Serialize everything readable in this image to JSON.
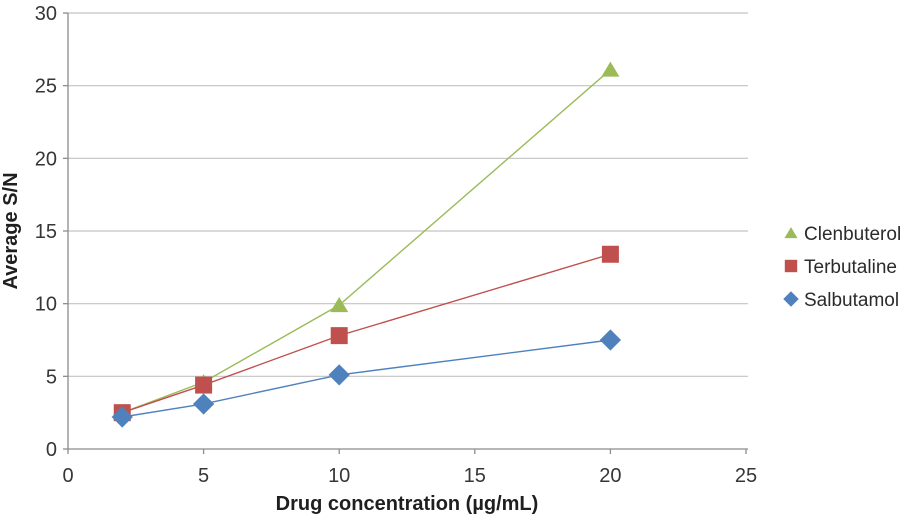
{
  "chart_data": {
    "type": "scatter",
    "title": "",
    "xlabel": "Drug concentration (µg/mL)",
    "ylabel": "Average S/N",
    "xlim": [
      0,
      25
    ],
    "ylim": [
      0,
      30
    ],
    "x_ticks": [
      0,
      5,
      10,
      15,
      20,
      25
    ],
    "y_ticks": [
      0,
      5,
      10,
      15,
      20,
      25,
      30
    ],
    "grid": "horizontal",
    "legend_position": "right",
    "x": [
      2,
      5,
      10,
      20
    ],
    "series": [
      {
        "name": "Clenbuterol",
        "marker": "triangle",
        "color": "#9BBB59",
        "values": [
          2.5,
          4.6,
          9.9,
          26.1
        ]
      },
      {
        "name": "Terbutaline",
        "marker": "square",
        "color": "#C0504D",
        "values": [
          2.5,
          4.4,
          7.8,
          13.4
        ]
      },
      {
        "name": "Salbutamol",
        "marker": "diamond",
        "color": "#4F81BD",
        "values": [
          2.2,
          3.1,
          5.1,
          7.5
        ]
      }
    ],
    "colors": {
      "gridline": "#C3C3C3",
      "axis": "#8C8C8C",
      "tick_text": "#363636",
      "title_text": "#1F1F1F",
      "background": "#FFFFFF"
    }
  }
}
